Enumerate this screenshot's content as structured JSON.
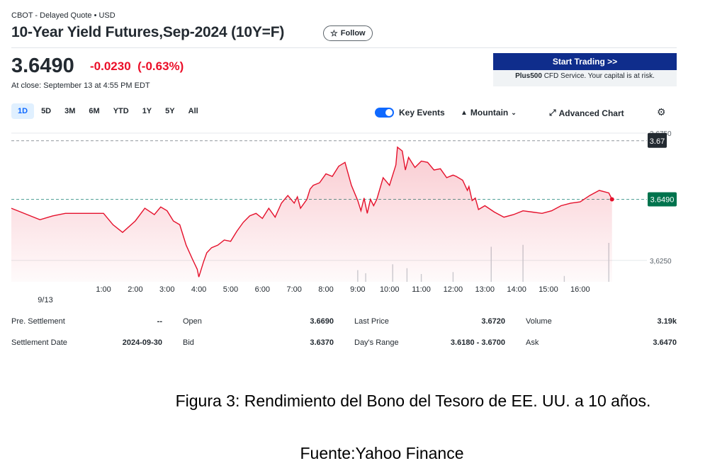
{
  "header": {
    "exchange": "CBOT - Delayed Quote • USD",
    "title": "10-Year Yield Futures,Sep-2024 (10Y=F)",
    "follow_label": "Follow"
  },
  "quote": {
    "price": "3.6490",
    "change": "-0.0230",
    "change_pct": "(-0.63%)",
    "close_note": "At close: September 13 at 4:55 PM EDT"
  },
  "ad": {
    "button_label": "Start Trading >>",
    "brand": "Plus500",
    "note": " CFD Service. Your capital is at risk."
  },
  "ranges": [
    "1D",
    "5D",
    "3M",
    "6M",
    "YTD",
    "1Y",
    "5Y",
    "All"
  ],
  "active_range": "1D",
  "toolbar": {
    "key_events": "Key Events",
    "mountain": "Mountain",
    "advanced_chart": "Advanced Chart"
  },
  "colors": {
    "line": "#e5102b",
    "negative": "#eb0f29",
    "active_range": "#0f69ff",
    "ad_button": "#0f2d8c",
    "current_price_badge": "#00734d",
    "high_badge": "#232a31"
  },
  "chart_data": {
    "type": "area",
    "ylim": [
      3.6166,
      3.6775
    ],
    "y_ticks": [
      3.625,
      3.675
    ],
    "y_tick_labels": [
      "3,6250",
      "3,6750"
    ],
    "x_ticks": [
      1,
      2,
      3,
      4,
      5,
      6,
      7,
      8,
      9,
      10,
      11,
      12,
      13,
      14,
      15,
      16
    ],
    "x_tick_labels": [
      "1:00",
      "2:00",
      "3:00",
      "4:00",
      "5:00",
      "6:00",
      "7:00",
      "8:00",
      "9:00",
      "10:00",
      "11:00",
      "12:00",
      "13:00",
      "14:00",
      "15:00",
      "16:00"
    ],
    "date_label": "9/13",
    "xlim": [
      -1.9,
      18.1
    ],
    "previous_close": 3.672,
    "previous_close_label": "3.67",
    "last_price_label": "3.6490",
    "series": [
      {
        "x": [
          -1.9,
          -1.6,
          -1.3,
          -1.0,
          -0.6,
          -0.2,
          0.2,
          0.6,
          1.0,
          1.3,
          1.6,
          2.0,
          2.3,
          2.6,
          2.8,
          3.0,
          3.2,
          3.4,
          3.6,
          3.8,
          3.95,
          4.0,
          4.15,
          4.25,
          4.4,
          4.6,
          4.8,
          5.0,
          5.2,
          5.4,
          5.6,
          5.8,
          6.0,
          6.2,
          6.4,
          6.6,
          6.8,
          7.0,
          7.1,
          7.2,
          7.4,
          7.5,
          7.6,
          7.8,
          8.0,
          8.2,
          8.4,
          8.6,
          8.8,
          9.0,
          9.1,
          9.2,
          9.3,
          9.4,
          9.5,
          9.6,
          9.8,
          10.0,
          10.2,
          10.25,
          10.4,
          10.5,
          10.6,
          10.8,
          11.0,
          11.2,
          11.4,
          11.6,
          11.8,
          12.0,
          12.1,
          12.3,
          12.45,
          12.5,
          12.6,
          12.7,
          12.8,
          13.0,
          13.3,
          13.6,
          13.9,
          14.2,
          14.5,
          14.8,
          15.1,
          15.4,
          15.7,
          16.0,
          16.3,
          16.6,
          16.9,
          17.0
        ],
        "y": [
          3.6455,
          3.644,
          3.6425,
          3.641,
          3.6425,
          3.6435,
          3.6435,
          3.6435,
          3.6435,
          3.639,
          3.636,
          3.6405,
          3.6455,
          3.643,
          3.646,
          3.6445,
          3.6405,
          3.639,
          3.631,
          3.6255,
          3.6215,
          3.6185,
          3.6245,
          3.628,
          3.63,
          3.631,
          3.633,
          3.6325,
          3.6365,
          3.64,
          3.6425,
          3.6435,
          3.6415,
          3.6455,
          3.642,
          3.6475,
          3.6505,
          3.6475,
          3.65,
          3.6455,
          3.649,
          3.653,
          3.6545,
          3.6555,
          3.659,
          3.658,
          3.662,
          3.6635,
          3.6545,
          3.6485,
          3.6445,
          3.6495,
          3.6435,
          3.649,
          3.6465,
          3.649,
          3.6575,
          3.6545,
          3.6625,
          3.6695,
          3.668,
          3.6605,
          3.6655,
          3.6615,
          3.664,
          3.6635,
          3.6605,
          3.661,
          3.6575,
          3.6585,
          3.658,
          3.6565,
          3.6525,
          3.654,
          3.6485,
          3.6495,
          3.645,
          3.6465,
          3.644,
          3.642,
          3.643,
          3.6445,
          3.644,
          3.6435,
          3.6445,
          3.6465,
          3.6475,
          3.648,
          3.6505,
          3.6525,
          3.6515,
          3.649
        ]
      }
    ],
    "volume_bars": [
      {
        "x": 9.0,
        "v": 0.3
      },
      {
        "x": 9.25,
        "v": 0.22
      },
      {
        "x": 10.1,
        "v": 0.45
      },
      {
        "x": 10.55,
        "v": 0.35
      },
      {
        "x": 11.0,
        "v": 0.2
      },
      {
        "x": 12.0,
        "v": 0.25
      },
      {
        "x": 13.2,
        "v": 0.9
      },
      {
        "x": 14.2,
        "v": 0.95
      },
      {
        "x": 15.5,
        "v": 0.15
      },
      {
        "x": 16.9,
        "v": 1.0
      }
    ]
  },
  "stats": [
    [
      {
        "label": "Pre. Settlement",
        "value": "--"
      },
      {
        "label": "Open",
        "value": "3.6690"
      },
      {
        "label": "Last Price",
        "value": "3.6720"
      },
      {
        "label": "Volume",
        "value": "3.19k"
      }
    ],
    [
      {
        "label": "Settlement Date",
        "value": "2024-09-30"
      },
      {
        "label": "Bid",
        "value": "3.6370"
      },
      {
        "label": "Day's Range",
        "value": "3.6180 - 3.6700"
      },
      {
        "label": "Ask",
        "value": "3.6470"
      }
    ]
  ],
  "caption": "Figura 3: Rendimiento del Bono del Tesoro de EE. UU. a 10 años.",
  "source": "Fuente:Yahoo Finance"
}
